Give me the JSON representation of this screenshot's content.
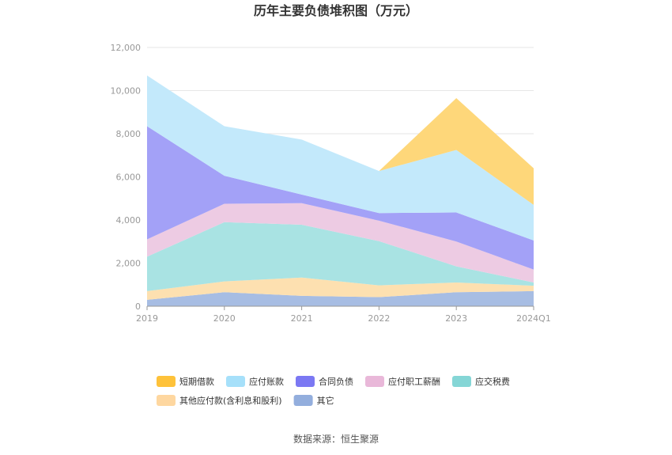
{
  "chart_data": {
    "type": "area",
    "stacked": true,
    "title": "历年主要负债堆积图（万元）",
    "categories": [
      "2019",
      "2020",
      "2021",
      "2022",
      "2023",
      "2024Q1"
    ],
    "ylim": [
      0,
      12000
    ],
    "yticks": [
      "0",
      "2,000",
      "4,000",
      "6,000",
      "8,000",
      "10,000",
      "12,000"
    ],
    "grid": true,
    "legend_position": "bottom",
    "series": [
      {
        "name": "其它",
        "color": "#a7bde3",
        "values": [
          300,
          650,
          480,
          420,
          650,
          700
        ]
      },
      {
        "name": "其他应付款(含利息和股利)",
        "color": "#fde0b0",
        "values": [
          400,
          500,
          850,
          550,
          450,
          250
        ]
      },
      {
        "name": "应交税费",
        "color": "#a9e3e3",
        "values": [
          1600,
          2750,
          2450,
          2050,
          750,
          150
        ]
      },
      {
        "name": "应付职工薪酬",
        "color": "#edcbe3",
        "values": [
          800,
          850,
          1000,
          950,
          1150,
          600
        ]
      },
      {
        "name": "合同负债",
        "color": "#a3a1f7",
        "values": [
          5250,
          1300,
          400,
          350,
          1350,
          1350
        ]
      },
      {
        "name": "应付账款",
        "color": "#c3e9fb",
        "values": [
          2350,
          2300,
          2550,
          1950,
          2900,
          1650
        ]
      },
      {
        "name": "短期借款",
        "color": "#fed77a",
        "values": [
          0,
          0,
          0,
          0,
          2400,
          1700
        ]
      }
    ],
    "legend": [
      {
        "name": "短期借款",
        "color": "#fec23a"
      },
      {
        "name": "应付账款",
        "color": "#a6e0fa"
      },
      {
        "name": "合同负债",
        "color": "#7b78f3"
      },
      {
        "name": "应付职工薪酬",
        "color": "#e9b8d9"
      },
      {
        "name": "应交税费",
        "color": "#85d6d6"
      },
      {
        "name": "其他应付款(含利息和股利)",
        "color": "#fed7a0"
      },
      {
        "name": "其它",
        "color": "#93aedd"
      }
    ]
  },
  "source": "数据来源：恒生聚源"
}
